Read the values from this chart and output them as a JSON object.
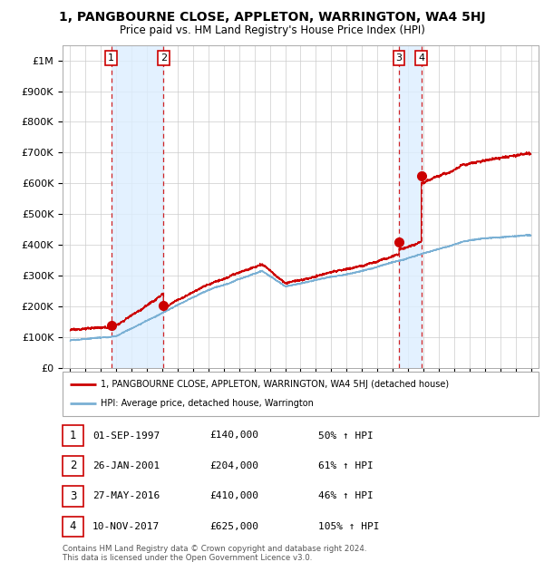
{
  "title": "1, PANGBOURNE CLOSE, APPLETON, WARRINGTON, WA4 5HJ",
  "subtitle": "Price paid vs. HM Land Registry's House Price Index (HPI)",
  "legend_line1": "1, PANGBOURNE CLOSE, APPLETON, WARRINGTON, WA4 5HJ (detached house)",
  "legend_line2": "HPI: Average price, detached house, Warrington",
  "footer": "Contains HM Land Registry data © Crown copyright and database right 2024.\nThis data is licensed under the Open Government Licence v3.0.",
  "sales": [
    {
      "num": 1,
      "date": "01-SEP-1997",
      "price": 140000,
      "pct": "50%"
    },
    {
      "num": 2,
      "date": "26-JAN-2001",
      "price": 204000,
      "pct": "61%"
    },
    {
      "num": 3,
      "date": "27-MAY-2016",
      "price": 410000,
      "pct": "46%"
    },
    {
      "num": 4,
      "date": "10-NOV-2017",
      "price": 625000,
      "pct": "105%"
    }
  ],
  "ylim": [
    0,
    1050000
  ],
  "yticks": [
    0,
    100000,
    200000,
    300000,
    400000,
    500000,
    600000,
    700000,
    800000,
    900000,
    1000000
  ],
  "ytick_labels": [
    "£0",
    "£100K",
    "£200K",
    "£300K",
    "£400K",
    "£500K",
    "£600K",
    "£700K",
    "£800K",
    "£900K",
    "£1M"
  ],
  "sale_year_nums": [
    1997.67,
    2001.07,
    2016.41,
    2017.86
  ],
  "sale_prices": [
    140000,
    204000,
    410000,
    625000
  ],
  "red_color": "#cc0000",
  "blue_color": "#7ab0d4",
  "shade_color": "#ddeeff",
  "grid_color": "#cccccc",
  "bg_color": "#ffffff"
}
